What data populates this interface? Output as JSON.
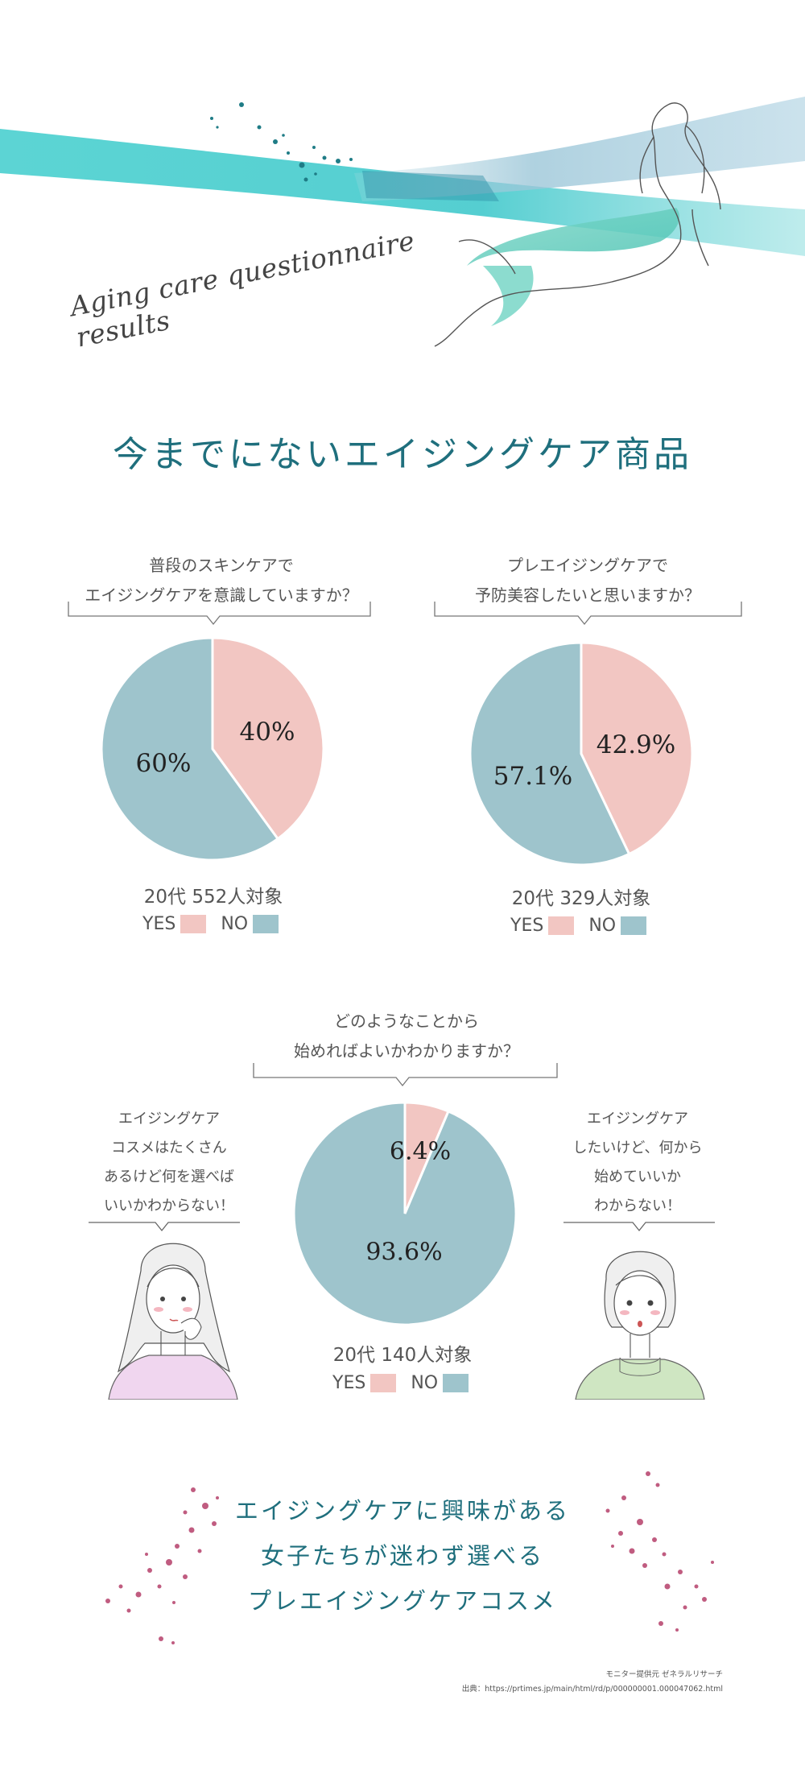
{
  "header": {
    "script_title": "Aging care questionnaire results",
    "main_title": "今までにないエイジングケア商品"
  },
  "colors": {
    "yes": "#f2c6c2",
    "no": "#9ec4cc",
    "accent": "#1f6f7d",
    "watercolor": "#3fcdcc",
    "dots_pink": "#c05c80"
  },
  "chart_data": [
    {
      "type": "pie",
      "question": [
        "普段のスキンケアで",
        "エイジングケアを意識していますか？"
      ],
      "labels": [
        "YES",
        "NO"
      ],
      "values": [
        40,
        60
      ],
      "value_labels": [
        "40%",
        "60%"
      ],
      "sample": "20代 552人対象",
      "legend": "bottom"
    },
    {
      "type": "pie",
      "question": [
        "プレエイジングケアで",
        "予防美容したいと思いますか？"
      ],
      "labels": [
        "YES",
        "NO"
      ],
      "values": [
        42.9,
        57.1
      ],
      "value_labels": [
        "42.9%",
        "57.1%"
      ],
      "sample": "20代 329人対象",
      "legend": "bottom"
    },
    {
      "type": "pie",
      "question": [
        "どのようなことから",
        "始めればよいかわかりますか？"
      ],
      "labels": [
        "YES",
        "NO"
      ],
      "values": [
        6.4,
        93.6
      ],
      "value_labels": [
        "6.4%",
        "93.6%"
      ],
      "sample": "20代 140人対象",
      "legend": "bottom"
    }
  ],
  "bubbles": {
    "left": [
      "エイジングケア",
      "コスメはたくさん",
      "あるけど何を選べば",
      "いいかわからない！"
    ],
    "right": [
      "エイジングケア",
      "したいけど、何から",
      "始めていいか",
      "わからない！"
    ]
  },
  "closing": {
    "lines": [
      "エイジングケアに興味がある",
      "女子たちが迷わず選べる",
      "プレエイジングケアコスメ"
    ]
  },
  "source": {
    "monitor": "モニター提供元 ゼネラルリサーチ",
    "url": "出典：https://prtimes.jp/main/html/rd/p/000000001.000047062.html"
  }
}
